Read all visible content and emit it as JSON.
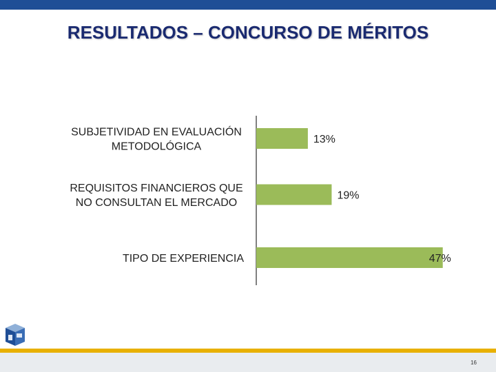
{
  "header": {
    "accent_color": "#1f4e96"
  },
  "slide": {
    "title": "RESULTADOS – CONCURSO DE MÉRITOS",
    "page_number": "16"
  },
  "footer": {
    "gold_color": "#e8b000",
    "band_color": "#e9ecef"
  },
  "chart_data": {
    "type": "bar",
    "orientation": "horizontal",
    "categories": [
      [
        "SUBJETIVIDAD EN EVALUACIÓN",
        "METODOLÓGICA"
      ],
      [
        "REQUISITOS FINANCIEROS QUE",
        "NO CONSULTAN EL MERCADO"
      ],
      [
        "TIPO DE EXPERIENCIA"
      ]
    ],
    "values": [
      13,
      19,
      47
    ],
    "value_labels": [
      "13%",
      "19%",
      "47%"
    ],
    "unit": "%",
    "bar_color": "#9bbb59",
    "axis_color": "#7f7f7f",
    "grid": false,
    "legend": "none"
  }
}
